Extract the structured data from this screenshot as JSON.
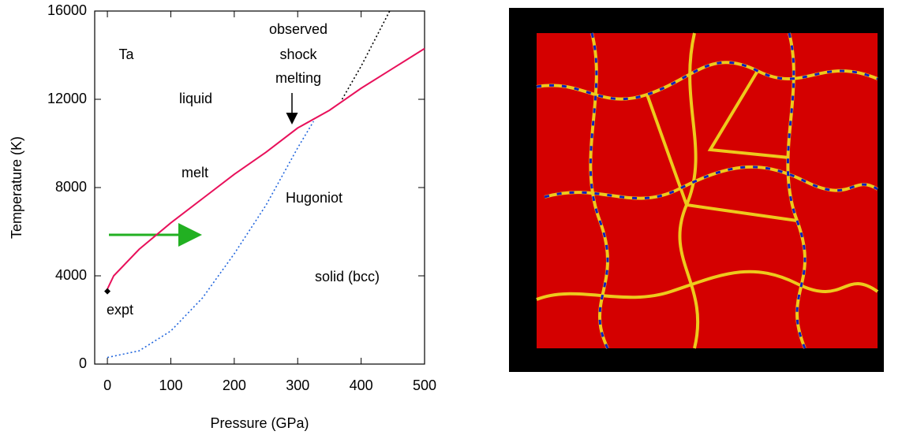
{
  "chart_data": {
    "type": "line",
    "x_label": "Pressure (GPa)",
    "y_label": "Temperature (K)",
    "xlim": [
      -20,
      500
    ],
    "ylim": [
      0,
      16000
    ],
    "xticks": [
      0,
      100,
      200,
      300,
      400,
      500
    ],
    "yticks": [
      0,
      4000,
      8000,
      12000,
      16000
    ],
    "annotations": [
      "Ta",
      "liquid",
      "solid (bcc)",
      "observed",
      "shock",
      "melting"
    ],
    "series": [
      {
        "name": "melt",
        "color": "#e8115b",
        "style": "solid",
        "x": [
          0,
          10,
          50,
          100,
          150,
          200,
          250,
          300,
          350,
          400,
          450,
          500
        ],
        "values": [
          3400,
          4000,
          5200,
          6400,
          7500,
          8600,
          9600,
          10700,
          11500,
          12500,
          13400,
          14300
        ]
      },
      {
        "name": "Hugoniot",
        "color": "#2266dd",
        "style": "dotted",
        "x": [
          0,
          50,
          100,
          150,
          200,
          250,
          300,
          325
        ],
        "values": [
          300,
          600,
          1500,
          3000,
          5000,
          7200,
          9800,
          11000
        ]
      },
      {
        "color": "#000000",
        "style": "dotted",
        "x": [
          370,
          400,
          445
        ],
        "values": [
          12000,
          13500,
          16000
        ]
      },
      {
        "name": "expt",
        "color": "#000000",
        "style": "marker",
        "x": [
          0
        ],
        "values": [
          3300
        ]
      }
    ]
  }
}
